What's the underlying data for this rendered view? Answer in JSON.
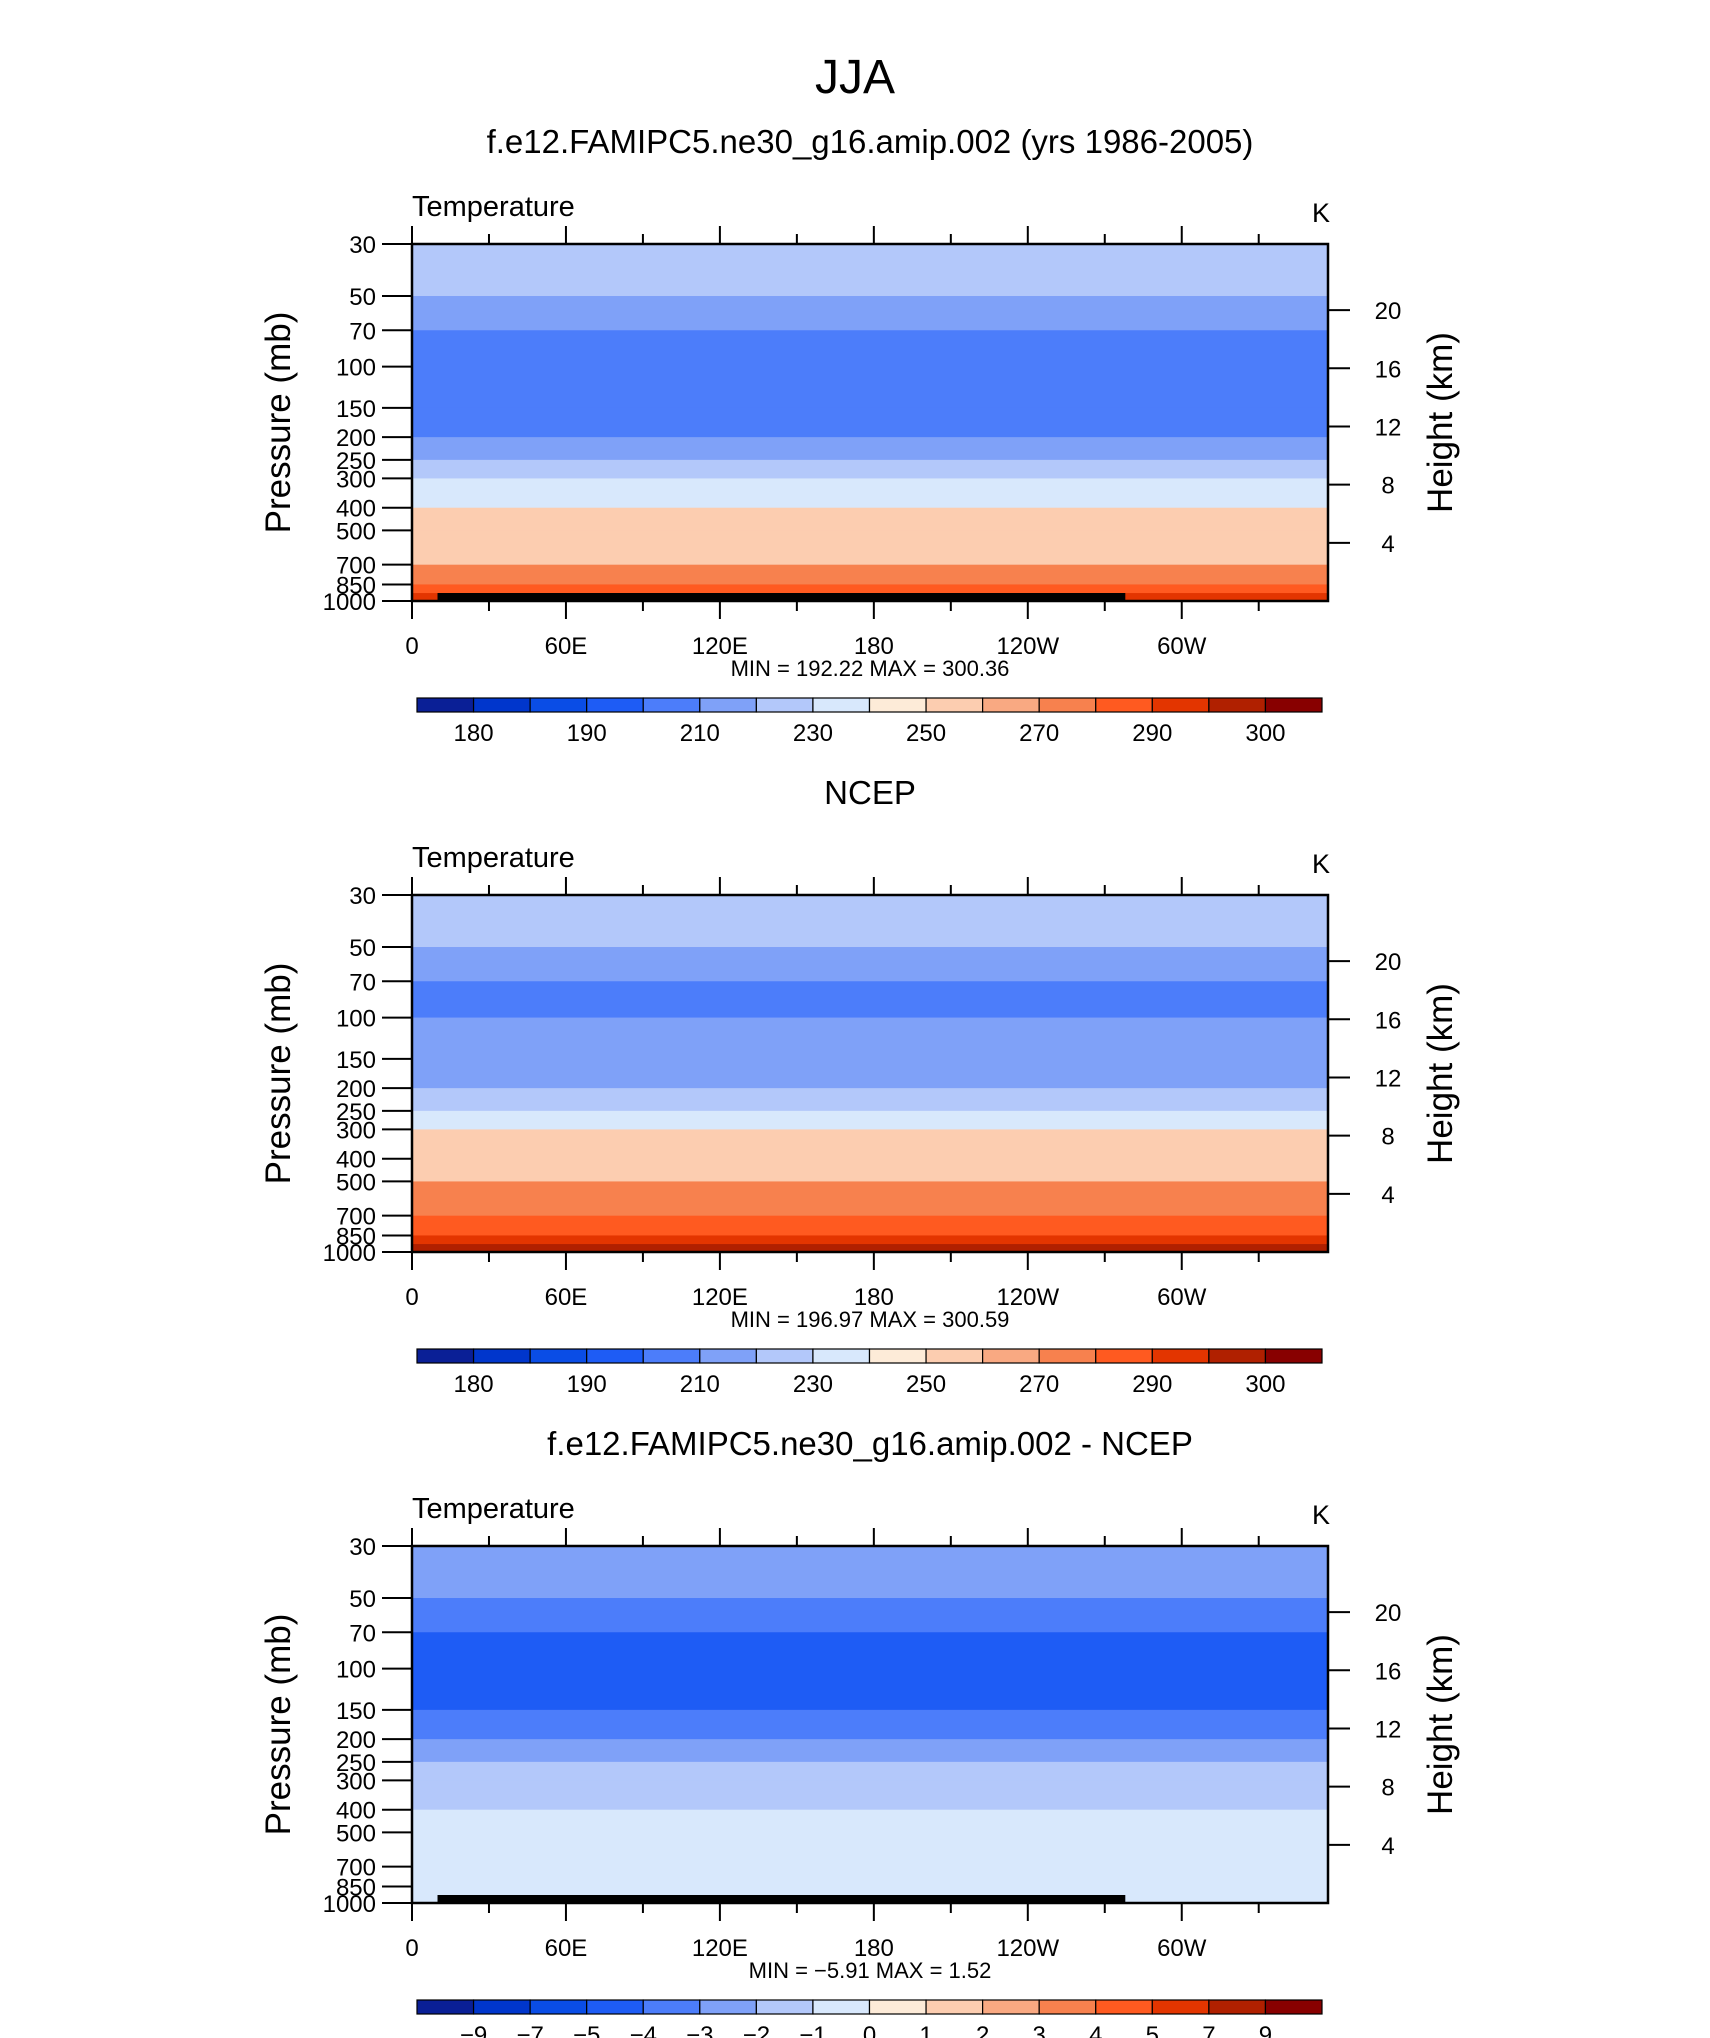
{
  "page_title": "JJA",
  "chart_data": [
    {
      "type": "heatmap",
      "title": "f.e12.FAMIPC5.ne30_g16.amip.002 (yrs 1986-2005)",
      "left_string": "Temperature",
      "right_string": "K",
      "ylabel": "Pressure (mb)",
      "ylabel_right": "Height (km)",
      "x_ticklabels": [
        "0",
        "60E",
        "120E",
        "180",
        "120W",
        "60W"
      ],
      "x_range_deg": [
        0,
        357
      ],
      "y_ticklabels": [
        "30",
        "50",
        "70",
        "100",
        "150",
        "200",
        "250",
        "300",
        "400",
        "500",
        "700",
        "850",
        "1000"
      ],
      "y_ticks_mb": [
        30,
        50,
        70,
        100,
        150,
        200,
        250,
        300,
        400,
        500,
        700,
        850,
        1000
      ],
      "y_range_mb": [
        30,
        1000
      ],
      "y_scale": "log",
      "height_ticklabels": [
        "20",
        "16",
        "12",
        "8",
        "4"
      ],
      "height_ticks_km": [
        20,
        16,
        12,
        8,
        4
      ],
      "stats_text": "MIN  =  192.22   MAX  =  300.36",
      "colorbar": {
        "labels": [
          "180",
          "190",
          "210",
          "230",
          "250",
          "270",
          "290",
          "300"
        ],
        "colors": [
          "#0A1F96",
          "#0036CC",
          "#0A4DE6",
          "#1E5CF5",
          "#4C7DFA",
          "#7FA1F8",
          "#B3C8FA",
          "#D8E8FC",
          "#FDEBD8",
          "#FCCDB0",
          "#F9A982",
          "#F7814E",
          "#FF5A20",
          "#E33500",
          "#B02000",
          "#880000"
        ]
      },
      "levels_mb": [
        30,
        50,
        70,
        100,
        150,
        200,
        250,
        300,
        400,
        500,
        700,
        850,
        925,
        1000
      ],
      "band_temps_k": [
        222,
        214,
        208,
        203,
        209,
        215,
        224,
        234,
        250,
        258,
        274,
        284,
        292
      ],
      "terrain": [
        [
          10,
          36
        ],
        [
          32,
          48
        ],
        [
          48,
          16
        ],
        [
          102,
          10
        ],
        [
          118,
          10
        ],
        [
          278,
          16
        ]
      ]
    },
    {
      "type": "heatmap",
      "title": "NCEP",
      "left_string": "Temperature",
      "right_string": "K",
      "ylabel": "Pressure (mb)",
      "ylabel_right": "Height (km)",
      "x_ticklabels": [
        "0",
        "60E",
        "120E",
        "180",
        "120W",
        "60W"
      ],
      "x_range_deg": [
        0,
        357
      ],
      "y_ticklabels": [
        "30",
        "50",
        "70",
        "100",
        "150",
        "200",
        "250",
        "300",
        "400",
        "500",
        "700",
        "850",
        "1000"
      ],
      "y_ticks_mb": [
        30,
        50,
        70,
        100,
        150,
        200,
        250,
        300,
        400,
        500,
        700,
        850,
        1000
      ],
      "y_range_mb": [
        30,
        1000
      ],
      "y_scale": "log",
      "height_ticklabels": [
        "20",
        "16",
        "12",
        "8",
        "4"
      ],
      "height_ticks_km": [
        20,
        16,
        12,
        8,
        4
      ],
      "stats_text": "MIN  =  196.97   MAX  =  300.59",
      "colorbar": {
        "labels": [
          "180",
          "190",
          "210",
          "230",
          "250",
          "270",
          "290",
          "300"
        ],
        "colors": [
          "#0A1F96",
          "#0036CC",
          "#0A4DE6",
          "#1E5CF5",
          "#4C7DFA",
          "#7FA1F8",
          "#B3C8FA",
          "#D8E8FC",
          "#FDEBD8",
          "#FCCDB0",
          "#F9A982",
          "#F7814E",
          "#FF5A20",
          "#E33500",
          "#B02000",
          "#880000"
        ]
      },
      "levels_mb": [
        30,
        50,
        70,
        100,
        150,
        200,
        250,
        300,
        400,
        500,
        700,
        850,
        925,
        1000
      ],
      "band_temps_k": [
        222,
        212,
        208,
        210,
        216,
        224,
        234,
        250,
        258,
        274,
        284,
        292,
        296
      ],
      "terrain": []
    },
    {
      "type": "heatmap",
      "title": "f.e12.FAMIPC5.ne30_g16.amip.002 - NCEP",
      "left_string": "Temperature",
      "right_string": "K",
      "ylabel": "Pressure (mb)",
      "ylabel_right": "Height (km)",
      "x_ticklabels": [
        "0",
        "60E",
        "120E",
        "180",
        "120W",
        "60W"
      ],
      "x_range_deg": [
        0,
        357
      ],
      "y_ticklabels": [
        "30",
        "50",
        "70",
        "100",
        "150",
        "200",
        "250",
        "300",
        "400",
        "500",
        "700",
        "850",
        "1000"
      ],
      "y_ticks_mb": [
        30,
        50,
        70,
        100,
        150,
        200,
        250,
        300,
        400,
        500,
        700,
        850,
        1000
      ],
      "y_range_mb": [
        30,
        1000
      ],
      "y_scale": "log",
      "height_ticklabels": [
        "20",
        "16",
        "12",
        "8",
        "4"
      ],
      "height_ticks_km": [
        20,
        16,
        12,
        8,
        4
      ],
      "stats_text": "MIN  =    −5.91   MAX  =     1.52",
      "colorbar": {
        "labels": [
          "−9",
          "−7",
          "−5",
          "−4",
          "−3",
          "−2",
          "−1",
          "0",
          "1",
          "2",
          "3",
          "4",
          "5",
          "7",
          "9"
        ],
        "colors": [
          "#0A1F96",
          "#0036CC",
          "#0A4DE6",
          "#1E5CF5",
          "#4C7DFA",
          "#7FA1F8",
          "#B3C8FA",
          "#D8E8FC",
          "#FDEBD8",
          "#FCCDB0",
          "#F9A982",
          "#F7814E",
          "#FF5A20",
          "#E33500",
          "#B02000",
          "#880000"
        ]
      },
      "levels_mb": [
        30,
        50,
        70,
        100,
        150,
        200,
        250,
        300,
        400,
        500,
        700,
        850,
        925,
        1000
      ],
      "band_temps_k": [
        -2.5,
        -3.5,
        -4.5,
        -4.5,
        -4,
        -3,
        -2,
        -1.5,
        -0.5,
        -0.5,
        -0.5,
        -0.5,
        -0.5
      ],
      "terrain": [
        [
          10,
          36
        ],
        [
          32,
          48
        ],
        [
          48,
          16
        ],
        [
          102,
          10
        ],
        [
          118,
          10
        ],
        [
          278,
          16
        ]
      ]
    }
  ]
}
